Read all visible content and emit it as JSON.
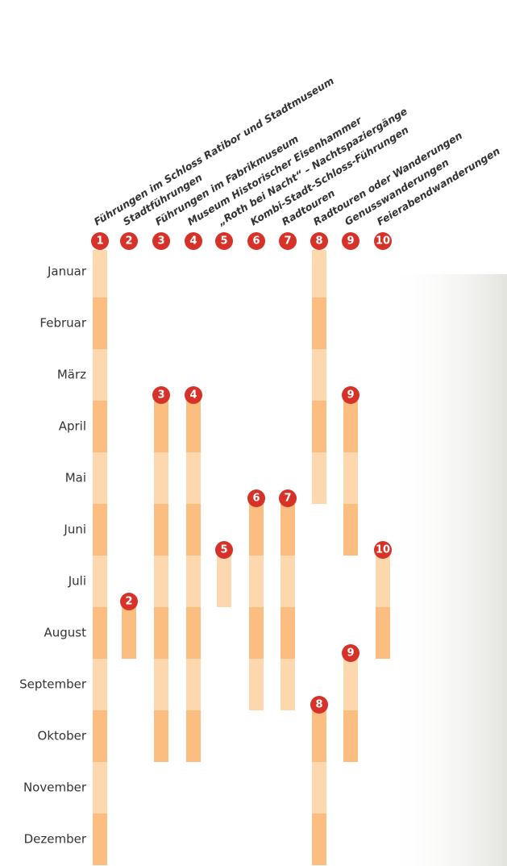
{
  "chart_data": {
    "type": "timeline",
    "categories": [
      "Januar",
      "Februar",
      "März",
      "April",
      "Mai",
      "Juni",
      "Juli",
      "August",
      "September",
      "Oktober",
      "November",
      "Dezember"
    ],
    "band_colors": [
      "#fdd8ae",
      "#fbbd80"
    ],
    "badge_color": "#d6322a",
    "series": [
      {
        "name": "Führungen im Schloss Ratibor und Stadtmuseum",
        "label": "1",
        "ranges": [
          [
            1,
            12
          ]
        ]
      },
      {
        "name": "Stadtführungen",
        "label": "2",
        "ranges": [
          [
            8,
            8
          ]
        ]
      },
      {
        "name": "Führungen im Fabrikmuseum",
        "label": "3",
        "ranges": [
          [
            4,
            10
          ]
        ]
      },
      {
        "name": "Museum Historischer Eisenhammer",
        "label": "4",
        "ranges": [
          [
            4,
            10
          ]
        ]
      },
      {
        "name": "„Roth bei Nacht“ – Nachtspaziergänge",
        "label": "5",
        "ranges": [
          [
            7,
            7
          ]
        ]
      },
      {
        "name": "Kombi-Stadt-Schloss-Führungen",
        "label": "6",
        "ranges": [
          [
            6,
            9
          ]
        ]
      },
      {
        "name": "Radtouren",
        "label": "7",
        "ranges": [
          [
            6,
            9
          ]
        ]
      },
      {
        "name": "Radtouren oder Wanderungen",
        "label": "8",
        "ranges": [
          [
            1,
            5
          ],
          [
            10,
            12
          ]
        ]
      },
      {
        "name": "Genusswanderungen",
        "label": "9",
        "ranges": [
          [
            4,
            6
          ],
          [
            9,
            10
          ]
        ]
      },
      {
        "name": "Feierabendwanderungen",
        "label": "10",
        "ranges": [
          [
            7,
            8
          ]
        ]
      }
    ]
  }
}
